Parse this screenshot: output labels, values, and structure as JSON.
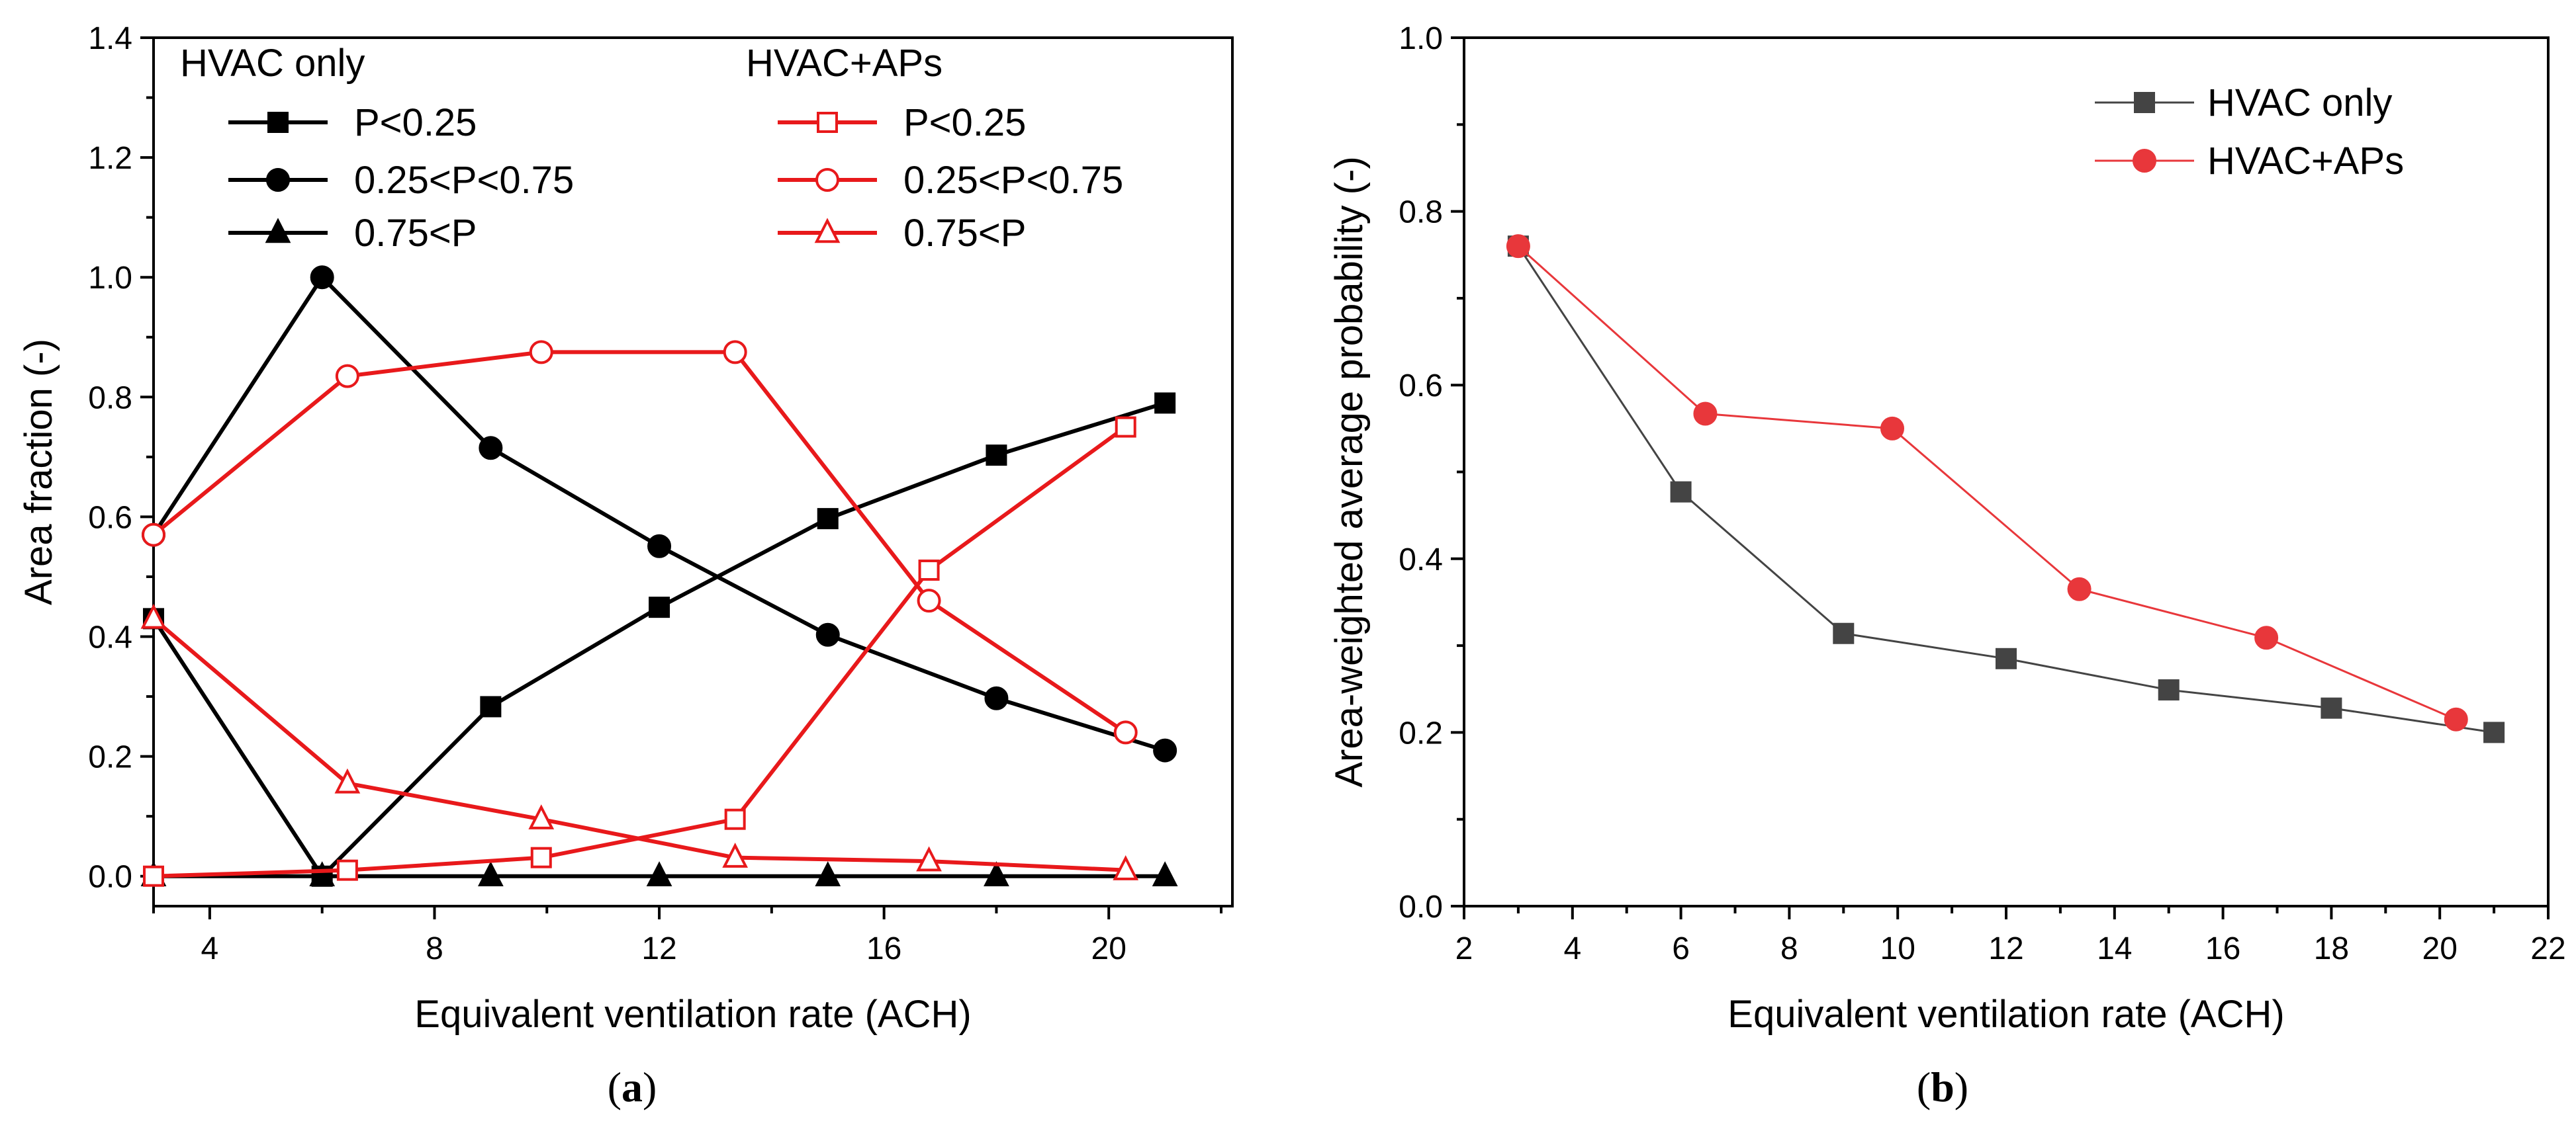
{
  "colors": {
    "black": "#000000",
    "red": "#e8191b",
    "dark_gray": "#444444",
    "red_b": "#e8373b"
  },
  "panel_labels": {
    "a": "a",
    "b": "b",
    "open": "(",
    "close": ")"
  },
  "chart_data": [
    {
      "id": "a",
      "type": "line",
      "xlabel": "Equivalent ventilation rate (ACH)",
      "ylabel": "Area fraction (-)",
      "xlim": [
        3,
        22.2
      ],
      "ylim": [
        -0.05,
        1.4
      ],
      "xticks": [
        4,
        8,
        12,
        16,
        20
      ],
      "xtick_labels": [
        "4",
        "8",
        "12",
        "16",
        "20"
      ],
      "yticks": [
        0.0,
        0.2,
        0.4,
        0.6,
        0.8,
        1.0,
        1.2,
        1.4
      ],
      "ytick_labels": [
        "0.0",
        "0.2",
        "0.4",
        "0.6",
        "0.8",
        "1.0",
        "1.2",
        "1.4"
      ],
      "legend_groups": [
        "HVAC only",
        "HVAC+APs"
      ],
      "series": [
        {
          "name": "P<0.25",
          "group": "HVAC only",
          "color": "#000000",
          "marker": "square",
          "filled": true,
          "x": [
            3,
            6,
            9,
            12,
            15,
            18,
            21
          ],
          "y": [
            0.43,
            0.0,
            0.283,
            0.449,
            0.597,
            0.703,
            0.79
          ]
        },
        {
          "name": "0.25<P<0.75",
          "group": "HVAC only",
          "color": "#000000",
          "marker": "circle",
          "filled": true,
          "x": [
            3,
            6,
            9,
            12,
            15,
            18,
            21
          ],
          "y": [
            0.57,
            1.0,
            0.715,
            0.551,
            0.403,
            0.297,
            0.21
          ]
        },
        {
          "name": "0.75<P",
          "group": "HVAC only",
          "color": "#000000",
          "marker": "triangle",
          "filled": true,
          "x": [
            3,
            6,
            9,
            12,
            15,
            18,
            21
          ],
          "y": [
            0.0,
            0.0,
            0.0,
            0.0,
            0.0,
            0.0,
            0.0
          ]
        },
        {
          "name": "P<0.25",
          "group": "HVAC+APs",
          "color": "#e8191b",
          "marker": "square",
          "filled": false,
          "x": [
            3,
            6.45,
            9.9,
            13.35,
            16.8,
            20.3
          ],
          "y": [
            0.0,
            0.01,
            0.031,
            0.095,
            0.511,
            0.75
          ]
        },
        {
          "name": "0.25<P<0.75",
          "group": "HVAC+APs",
          "color": "#e8191b",
          "marker": "circle",
          "filled": false,
          "x": [
            3,
            6.45,
            9.9,
            13.35,
            16.8,
            20.3
          ],
          "y": [
            0.57,
            0.835,
            0.875,
            0.875,
            0.46,
            0.24
          ]
        },
        {
          "name": "0.75<P",
          "group": "HVAC+APs",
          "color": "#e8191b",
          "marker": "triangle",
          "filled": false,
          "x": [
            3,
            6.45,
            9.9,
            13.35,
            16.8,
            20.3
          ],
          "y": [
            0.43,
            0.155,
            0.095,
            0.031,
            0.025,
            0.01
          ]
        }
      ]
    },
    {
      "id": "b",
      "type": "line",
      "xlabel": "Equivalent ventilation rate (ACH)",
      "ylabel": "Area-weighted average probability (-)",
      "xlim": [
        2,
        22
      ],
      "ylim": [
        0.0,
        1.0
      ],
      "xticks": [
        2,
        4,
        6,
        8,
        10,
        12,
        14,
        16,
        18,
        20,
        22
      ],
      "xtick_labels": [
        "2",
        "4",
        "6",
        "8",
        "10",
        "12",
        "14",
        "16",
        "18",
        "20",
        "22"
      ],
      "yticks": [
        0.0,
        0.2,
        0.4,
        0.6,
        0.8,
        1.0
      ],
      "ytick_labels": [
        "0.0",
        "0.2",
        "0.4",
        "0.6",
        "0.8",
        "1.0"
      ],
      "series": [
        {
          "name": "HVAC only",
          "color": "#444444",
          "marker": "square",
          "filled": true,
          "x": [
            3,
            6,
            9,
            12,
            15,
            18,
            21
          ],
          "y": [
            0.76,
            0.477,
            0.314,
            0.285,
            0.249,
            0.228,
            0.2
          ]
        },
        {
          "name": "HVAC+APs",
          "color": "#e8373b",
          "marker": "circle",
          "filled": true,
          "x": [
            3,
            6.45,
            9.9,
            13.35,
            16.8,
            20.3
          ],
          "y": [
            0.76,
            0.567,
            0.55,
            0.365,
            0.309,
            0.215
          ]
        }
      ]
    }
  ]
}
